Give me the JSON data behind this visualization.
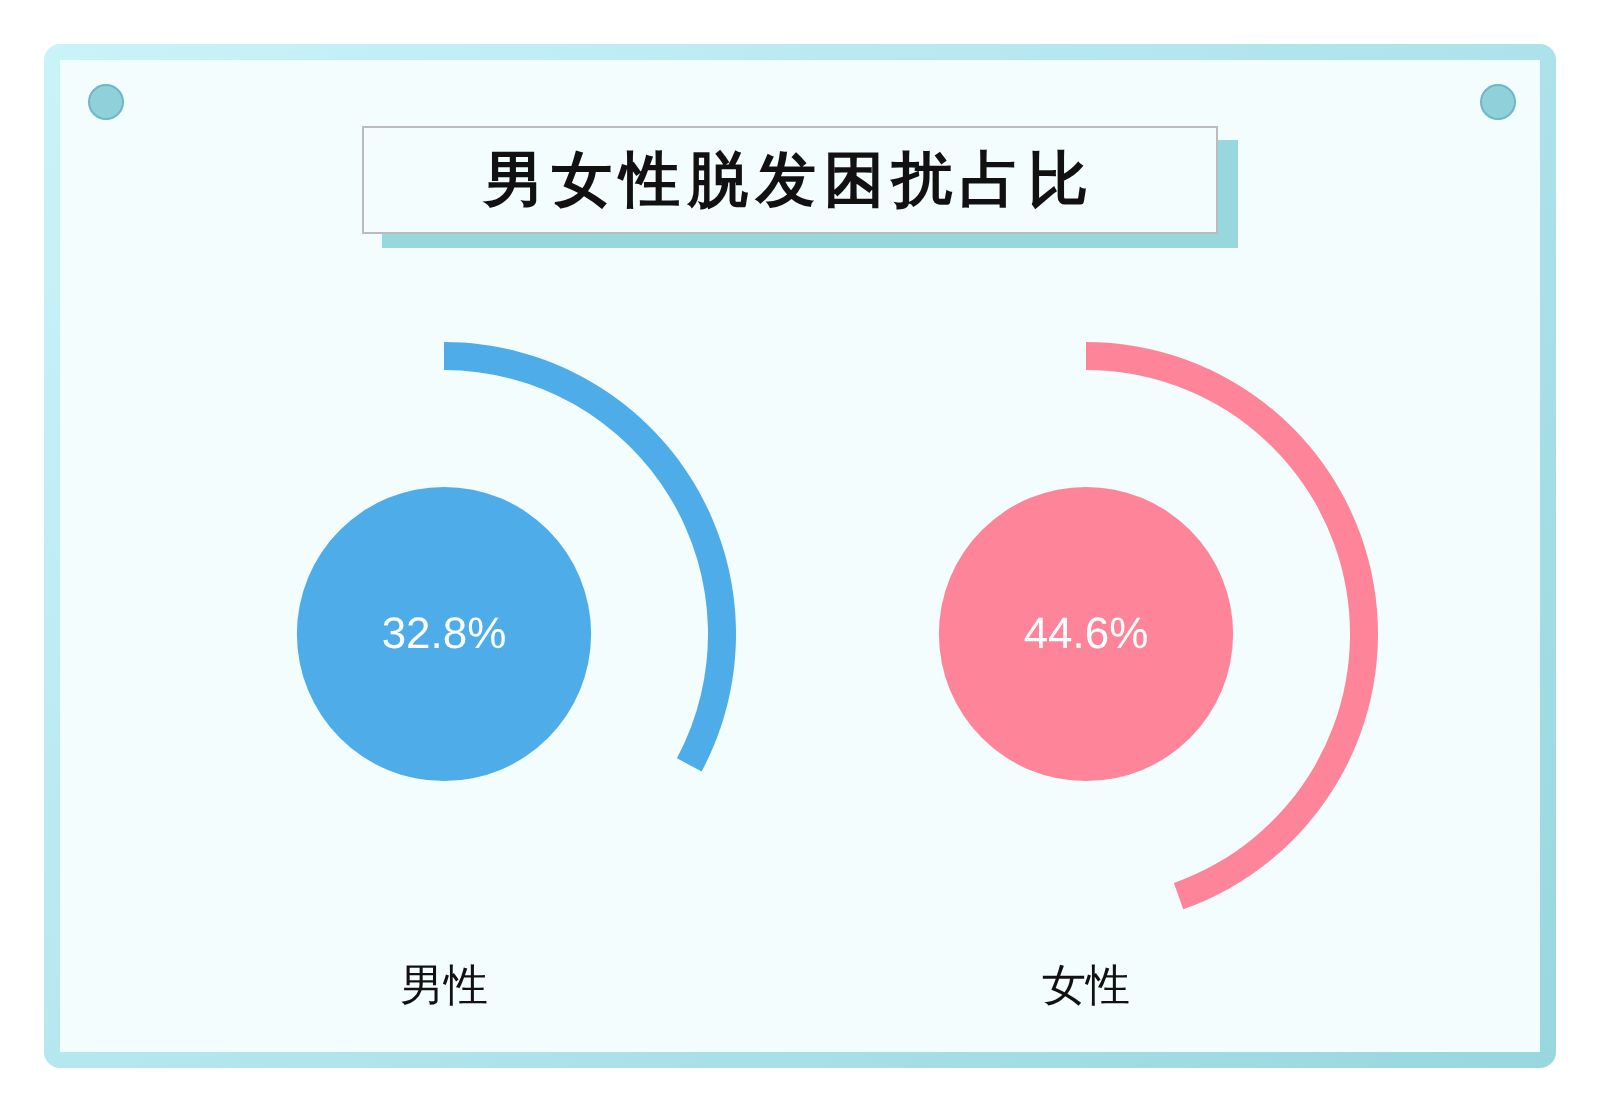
{
  "chart_data": {
    "type": "other",
    "title": "男女性脱发困扰占比",
    "categories": [
      "男性",
      "女性"
    ],
    "values": [
      32.8,
      44.6
    ],
    "colors": [
      "#4eade8",
      "#fe8599"
    ],
    "value_labels": [
      "32.8%",
      "44.6%"
    ]
  }
}
